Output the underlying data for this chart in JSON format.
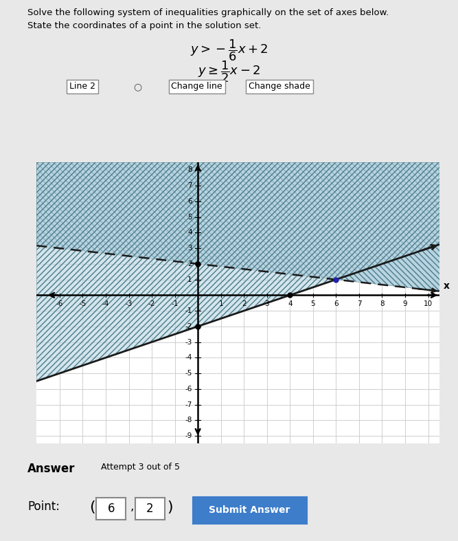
{
  "title_line1": "Solve the following system of inequalities graphically on the set of axes below.",
  "title_line2": "State the coordinates of a point in the solution set.",
  "line1": {
    "slope": -0.16666666666666666,
    "intercept": 2,
    "style": "dashed",
    "color": "#1a1a1a"
  },
  "line2": {
    "slope": 0.5,
    "intercept": -2,
    "style": "solid",
    "color": "#1a1a1a"
  },
  "xlim": [
    -7,
    10.5
  ],
  "ylim": [
    -9.5,
    8.5
  ],
  "xticks": [
    -6,
    -5,
    -4,
    -3,
    -2,
    -1,
    1,
    2,
    3,
    4,
    5,
    6,
    7,
    8,
    9,
    10
  ],
  "yticks": [
    -9,
    -8,
    -7,
    -6,
    -5,
    -4,
    -3,
    -2,
    -1,
    1,
    2,
    3,
    4,
    5,
    6,
    7,
    8
  ],
  "grid_color": "#c8c8c8",
  "shade_color": "#b8d4e0",
  "hatch1_color": "#4a7a8a",
  "hatch2_color": "#4a7a8a",
  "bg_color": "#ffffff",
  "fig_bg": "#e8e8e8",
  "point_answer": [
    6,
    2
  ],
  "ui_line2": "Line 2",
  "ui_change_line": "Change line",
  "ui_change_shade": "Change shade",
  "answer_label": "Answer",
  "attempt_label": "Attempt 3 out of 5",
  "point_label": "Point:",
  "submit_label": "Submit Answer",
  "p1": 6,
  "p2": 2
}
